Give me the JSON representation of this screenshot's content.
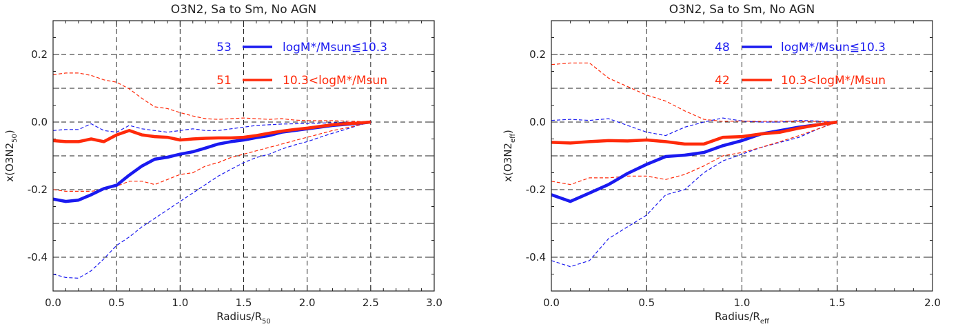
{
  "chart_data": [
    {
      "type": "line",
      "title": "O3N2, Sa to Sm, No AGN",
      "xlabel_main": "Radius/R",
      "xlabel_sub": "50",
      "ylabel_main": "x(O3N2",
      "ylabel_sub": "50",
      "ylabel_close": ")",
      "xlim": [
        0,
        3
      ],
      "ylim": [
        -0.5,
        0.3
      ],
      "xticks": [
        0,
        0.5,
        1,
        1.5,
        2,
        2.5,
        3
      ],
      "xtick_labels": [
        "0.0",
        "0.5",
        "1.0",
        "1.5",
        "2.0",
        "2.5",
        "3.0"
      ],
      "yticks": [
        -0.4,
        -0.2,
        0,
        0.2
      ],
      "ytick_labels": [
        "-0.4",
        "-0.2",
        "0.0",
        "0.2"
      ],
      "grid_y": [
        -0.4,
        -0.3,
        -0.2,
        -0.1,
        0,
        0.1,
        0.2
      ],
      "grid_x": [
        0.5,
        1,
        1.5,
        2,
        2.5
      ],
      "grid": true,
      "legend_position": "top-right",
      "legend": [
        {
          "count": "53",
          "label": "logM*/Msun≦10.3",
          "color": "#1a1af0"
        },
        {
          "count": "51",
          "label": "10.3<logM*/Msun",
          "color": "#ff2a0a"
        }
      ],
      "series": [
        {
          "color": "#1a1af0",
          "x": [
            0,
            0.1,
            0.2,
            0.3,
            0.4,
            0.5,
            0.6,
            0.7,
            0.8,
            0.9,
            1.0,
            1.1,
            1.2,
            1.3,
            1.4,
            1.5,
            1.6,
            1.7,
            1.8,
            1.9,
            2.0,
            2.1,
            2.2,
            2.3,
            2.4,
            2.5
          ],
          "median": [
            -0.228,
            -0.235,
            -0.231,
            -0.215,
            -0.197,
            -0.187,
            -0.157,
            -0.13,
            -0.11,
            -0.104,
            -0.095,
            -0.088,
            -0.077,
            -0.065,
            -0.058,
            -0.053,
            -0.046,
            -0.04,
            -0.03,
            -0.025,
            -0.02,
            -0.015,
            -0.01,
            -0.007,
            -0.004,
            0
          ],
          "upper": [
            -0.025,
            -0.022,
            -0.022,
            -0.005,
            -0.025,
            -0.03,
            -0.01,
            -0.02,
            -0.025,
            -0.03,
            -0.025,
            -0.02,
            -0.025,
            -0.025,
            -0.02,
            -0.015,
            -0.01,
            -0.008,
            -0.006,
            -0.005,
            -0.004,
            -0.003,
            -0.002,
            -0.001,
            0,
            0
          ],
          "lower": [
            -0.45,
            -0.46,
            -0.462,
            -0.44,
            -0.405,
            -0.365,
            -0.34,
            -0.31,
            -0.285,
            -0.26,
            -0.235,
            -0.21,
            -0.185,
            -0.16,
            -0.14,
            -0.12,
            -0.105,
            -0.095,
            -0.08,
            -0.068,
            -0.058,
            -0.045,
            -0.033,
            -0.022,
            -0.01,
            0
          ]
        },
        {
          "color": "#ff2a0a",
          "x": [
            0,
            0.1,
            0.2,
            0.3,
            0.4,
            0.5,
            0.6,
            0.7,
            0.8,
            0.9,
            1.0,
            1.1,
            1.2,
            1.3,
            1.4,
            1.5,
            1.6,
            1.7,
            1.8,
            1.9,
            2.0,
            2.1,
            2.2,
            2.3,
            2.4,
            2.5
          ],
          "median": [
            -0.055,
            -0.058,
            -0.058,
            -0.05,
            -0.058,
            -0.038,
            -0.025,
            -0.038,
            -0.043,
            -0.045,
            -0.053,
            -0.05,
            -0.048,
            -0.047,
            -0.047,
            -0.045,
            -0.04,
            -0.033,
            -0.027,
            -0.022,
            -0.018,
            -0.013,
            -0.008,
            -0.005,
            -0.003,
            0
          ],
          "upper": [
            0.14,
            0.145,
            0.145,
            0.138,
            0.125,
            0.118,
            0.098,
            0.07,
            0.045,
            0.04,
            0.028,
            0.018,
            0.01,
            0.008,
            0.01,
            0.012,
            0.01,
            0.008,
            0.01,
            0.006,
            0.004,
            0.004,
            0.004,
            0.003,
            0.002,
            0
          ],
          "lower": [
            -0.2,
            -0.205,
            -0.205,
            -0.205,
            -0.2,
            -0.19,
            -0.175,
            -0.175,
            -0.185,
            -0.17,
            -0.155,
            -0.15,
            -0.13,
            -0.12,
            -0.105,
            -0.095,
            -0.085,
            -0.075,
            -0.065,
            -0.055,
            -0.045,
            -0.035,
            -0.025,
            -0.018,
            -0.01,
            0
          ]
        }
      ]
    },
    {
      "type": "line",
      "title": "O3N2, Sa to Sm, No AGN",
      "xlabel_main": "Radius/R",
      "xlabel_sub": "eff",
      "ylabel_main": "x(O3N2",
      "ylabel_sub": "eff",
      "ylabel_close": ")",
      "xlim": [
        0,
        2
      ],
      "ylim": [
        -0.5,
        0.3
      ],
      "xticks": [
        0,
        0.5,
        1,
        1.5,
        2
      ],
      "xtick_labels": [
        "0.0",
        "0.5",
        "1.0",
        "1.5",
        "2.0"
      ],
      "yticks": [
        -0.4,
        -0.2,
        0,
        0.2
      ],
      "ytick_labels": [
        "-0.4",
        "-0.2",
        "0.0",
        "0.2"
      ],
      "grid_y": [
        -0.4,
        -0.3,
        -0.2,
        -0.1,
        0,
        0.1,
        0.2
      ],
      "grid_x": [
        0.5,
        1,
        1.5
      ],
      "grid": true,
      "legend_position": "top-right",
      "legend": [
        {
          "count": "48",
          "label": "logM*/Msun≦10.3",
          "color": "#1a1af0"
        },
        {
          "count": "42",
          "label": "10.3<logM*/Msun",
          "color": "#ff2a0a"
        }
      ],
      "series": [
        {
          "color": "#1a1af0",
          "x": [
            0,
            0.1,
            0.2,
            0.3,
            0.4,
            0.5,
            0.6,
            0.7,
            0.8,
            0.9,
            1.0,
            1.1,
            1.2,
            1.3,
            1.4,
            1.5
          ],
          "median": [
            -0.215,
            -0.235,
            -0.21,
            -0.185,
            -0.152,
            -0.125,
            -0.102,
            -0.098,
            -0.09,
            -0.07,
            -0.055,
            -0.035,
            -0.025,
            -0.015,
            -0.008,
            0
          ],
          "upper": [
            0.005,
            0.008,
            0.005,
            0.01,
            -0.01,
            -0.03,
            -0.04,
            -0.015,
            0,
            0.012,
            0.003,
            0,
            0,
            0.005,
            0.003,
            0
          ],
          "lower": [
            -0.41,
            -0.428,
            -0.41,
            -0.345,
            -0.31,
            -0.275,
            -0.215,
            -0.2,
            -0.15,
            -0.115,
            -0.095,
            -0.075,
            -0.06,
            -0.045,
            -0.02,
            0
          ]
        },
        {
          "color": "#ff2a0a",
          "x": [
            0,
            0.1,
            0.2,
            0.3,
            0.4,
            0.5,
            0.6,
            0.7,
            0.8,
            0.9,
            1.0,
            1.1,
            1.2,
            1.3,
            1.4,
            1.5
          ],
          "median": [
            -0.06,
            -0.062,
            -0.058,
            -0.055,
            -0.056,
            -0.053,
            -0.058,
            -0.065,
            -0.065,
            -0.045,
            -0.043,
            -0.035,
            -0.03,
            -0.018,
            -0.008,
            0
          ],
          "upper": [
            0.17,
            0.175,
            0.175,
            0.13,
            0.105,
            0.08,
            0.062,
            0.033,
            0.008,
            0.002,
            0.003,
            0.002,
            0.003,
            0.002,
            0.002,
            0
          ],
          "lower": [
            -0.175,
            -0.185,
            -0.165,
            -0.165,
            -0.16,
            -0.16,
            -0.17,
            -0.155,
            -0.13,
            -0.1,
            -0.09,
            -0.075,
            -0.058,
            -0.04,
            -0.02,
            0
          ]
        }
      ]
    }
  ]
}
